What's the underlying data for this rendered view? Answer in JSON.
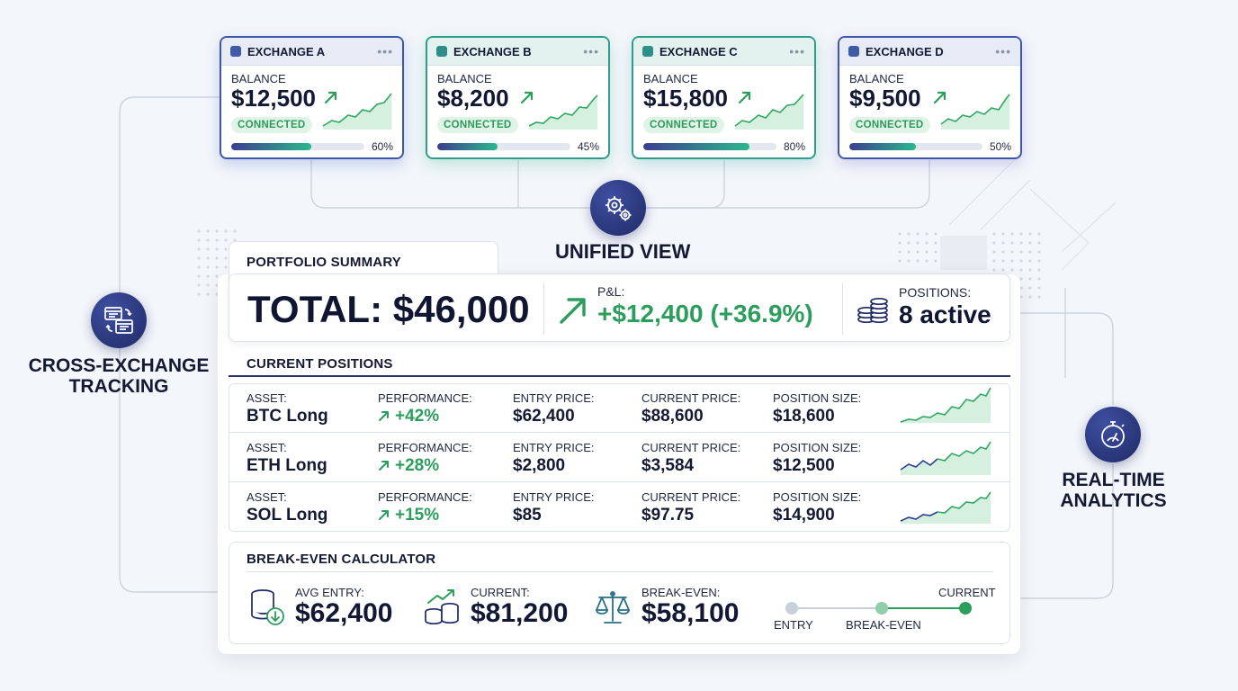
{
  "exchanges": [
    {
      "name": "EXCHANGE A",
      "balance_label": "BALANCE",
      "balance": "$12,500",
      "status": "CONNECTED",
      "progress": 0.6,
      "progress_label": "60%"
    },
    {
      "name": "EXCHANGE B",
      "balance_label": "BALANCE",
      "balance": "$8,200",
      "status": "CONNECTED",
      "progress": 0.45,
      "progress_label": "45%"
    },
    {
      "name": "EXCHANGE C",
      "balance_label": "BALANCE",
      "balance": "$15,800",
      "status": "CONNECTED",
      "progress": 0.8,
      "progress_label": "80%"
    },
    {
      "name": "EXCHANGE D",
      "balance_label": "BALANCE",
      "balance": "$9,500",
      "status": "CONNECTED",
      "progress": 0.5,
      "progress_label": "50%"
    }
  ],
  "unified_view": {
    "label": "UNIFIED VIEW",
    "icon": "gears-icon"
  },
  "cross_exchange": {
    "label_line1": "CROSS-EXCHANGE",
    "label_line2": "TRACKING",
    "icon": "sync-windows-icon"
  },
  "realtime": {
    "label_line1": "REAL-TIME",
    "label_line2": "ANALYTICS",
    "icon": "stopwatch-gauge-icon"
  },
  "summary": {
    "title": "PORTFOLIO SUMMARY",
    "total": "TOTAL: $46,000",
    "pnl_label": "P&L:",
    "pnl_value": "+$12,400 (+36.9%)",
    "positions_label": "POSITIONS:",
    "positions_value": "8 active"
  },
  "positions": {
    "title": "CURRENT POSITIONS",
    "labels": {
      "asset": "ASSET:",
      "performance": "PERFORMANCE:",
      "entry": "ENTRY PRICE:",
      "current": "CURRENT PRICE:",
      "size": "POSITION SIZE:"
    },
    "rows": [
      {
        "asset": "BTC Long",
        "performance": "+42%",
        "entry": "$62,400",
        "current": "$88,600",
        "size": "$18,600"
      },
      {
        "asset": "ETH Long",
        "performance": "+28%",
        "entry": "$2,800",
        "current": "$3,584",
        "size": "$12,500"
      },
      {
        "asset": "SOL Long",
        "performance": "+15%",
        "entry": "$85",
        "current": "$97.75",
        "size": "$14,900"
      }
    ]
  },
  "breakeven": {
    "title": "BREAK-EVEN CALCULATOR",
    "avg_entry_label": "AVG ENTRY:",
    "avg_entry": "$62,400",
    "current_label": "CURRENT:",
    "current": "$81,200",
    "breakeven_label": "BREAK-EVEN:",
    "breakeven": "$58,100",
    "scale": {
      "entry": "ENTRY",
      "breakeven": "BREAK-EVEN",
      "current": "CURRENT"
    }
  },
  "colors": {
    "accent_green": "#2b9d5c",
    "navy": "#1f2a66",
    "teal_border": "#2f9c8a",
    "blue_border": "#3f55a8"
  }
}
